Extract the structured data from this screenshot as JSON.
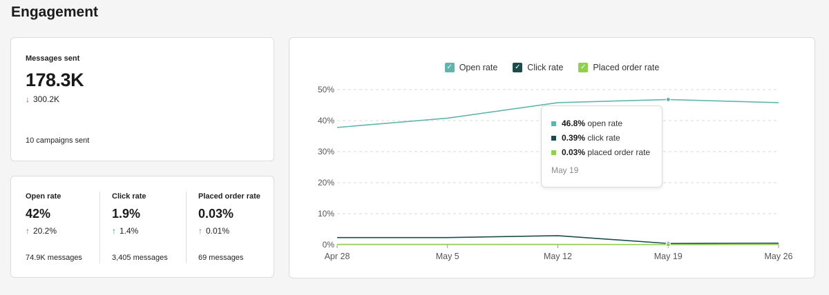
{
  "page": {
    "title": "Engagement"
  },
  "messages_sent": {
    "label": "Messages sent",
    "value": "178.3K",
    "delta": "300.2K",
    "delta_direction": "down",
    "footer": "10 campaigns sent"
  },
  "rates": [
    {
      "label": "Open rate",
      "value": "42%",
      "delta": "20.2%",
      "delta_direction": "up",
      "footer": "74.9K messages"
    },
    {
      "label": "Click rate",
      "value": "1.9%",
      "delta": "1.4%",
      "delta_direction": "up",
      "footer": "3,405 messages"
    },
    {
      "label": "Placed order rate",
      "value": "0.03%",
      "delta": "0.01%",
      "delta_direction": "up",
      "footer": "69 messages"
    }
  ],
  "icons": {
    "down": "arrow-down-icon",
    "up": "arrow-up-icon",
    "check": "check-icon"
  },
  "colors": {
    "open": "#5fb5ad",
    "click": "#1d4b4b",
    "order": "#8fd14f",
    "down": "#c0392b",
    "up": "#2e8b73"
  },
  "chart_data": {
    "type": "line",
    "x": [
      "Apr 28",
      "May 5",
      "May 12",
      "May 19",
      "May 26"
    ],
    "ylim": [
      0,
      50
    ],
    "yticks": [
      "0%",
      "10%",
      "20%",
      "30%",
      "40%",
      "50%"
    ],
    "grid": true,
    "legend_position": "top-center",
    "series": [
      {
        "name": "Open rate",
        "color": "#5fb5ad",
        "values": [
          37.8,
          40.8,
          45.8,
          46.8,
          45.8
        ]
      },
      {
        "name": "Click rate",
        "color": "#1d4b4b",
        "values": [
          2.3,
          2.3,
          2.9,
          0.39,
          0.5
        ]
      },
      {
        "name": "Placed order rate",
        "color": "#8fd14f",
        "values": [
          0.1,
          0.1,
          0.1,
          0.03,
          0.1
        ]
      }
    ],
    "tooltip": {
      "date": "May 19",
      "rows": [
        {
          "value": "46.8%",
          "text": "open rate"
        },
        {
          "value": "0.39%",
          "text": "click rate"
        },
        {
          "value": "0.03%",
          "text": "placed order rate"
        }
      ]
    }
  }
}
